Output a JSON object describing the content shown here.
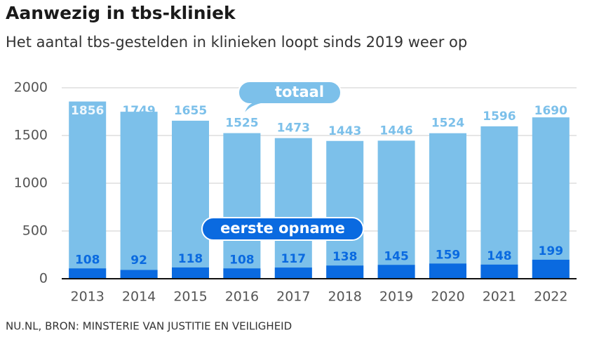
{
  "chart_data": {
    "type": "bar",
    "title": "Aanwezig in tbs-kliniek",
    "subtitle": "Het aantal tbs-gestelden in klinieken loopt sinds 2019 weer op",
    "source": "NU.NL, BRON: MINSTERIE VAN JUSTITIE EN VEILIGHEID",
    "categories": [
      "2013",
      "2014",
      "2015",
      "2016",
      "2017",
      "2018",
      "2019",
      "2020",
      "2021",
      "2022"
    ],
    "series": [
      {
        "name": "totaal",
        "color": "#7cc0ea",
        "values": [
          1856,
          1749,
          1655,
          1525,
          1473,
          1443,
          1446,
          1524,
          1596,
          1690
        ]
      },
      {
        "name": "eerste opname",
        "color": "#0a6ae0",
        "values": [
          108,
          92,
          118,
          108,
          117,
          138,
          145,
          159,
          148,
          199
        ]
      }
    ],
    "ylim": [
      0,
      2000
    ],
    "yticks": [
      0,
      500,
      1000,
      1500,
      2000
    ],
    "grid": true
  }
}
